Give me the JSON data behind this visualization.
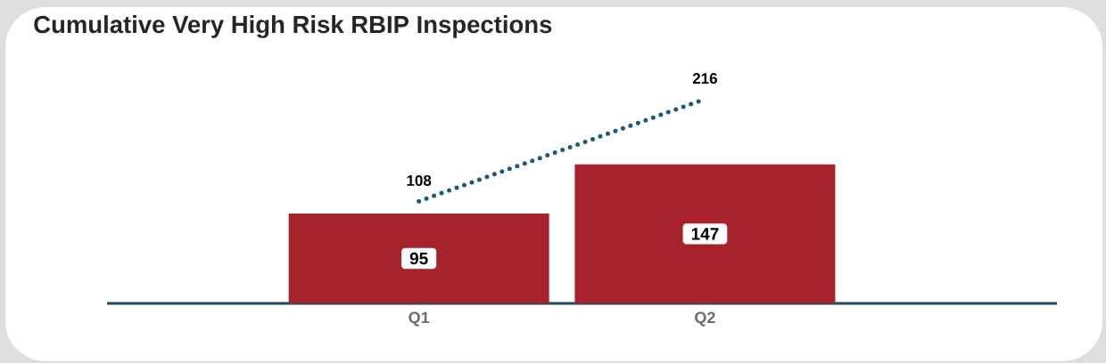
{
  "chart_data": {
    "type": "bar",
    "title": "Cumulative Very High Risk RBIP Inspections",
    "categories": [
      "Q1",
      "Q2"
    ],
    "data_labels": true,
    "series": [
      {
        "color": "#a8222b",
        "values": [
          95,
          147
        ]
      },
      {
        "type": "line",
        "color": "#1b5a7a",
        "line_style": "dotted",
        "values": [
          108,
          216
        ]
      }
    ]
  }
}
